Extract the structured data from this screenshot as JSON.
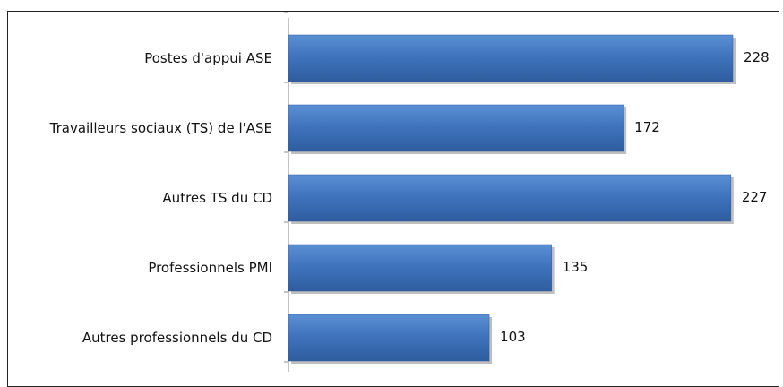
{
  "chart_data": {
    "type": "bar",
    "orientation": "horizontal",
    "categories": [
      "Postes d'appui ASE",
      "Travailleurs sociaux (TS) de l'ASE",
      "Autres TS du CD",
      "Professionnels PMI",
      "Autres professionnels du CD"
    ],
    "values": [
      228,
      172,
      227,
      135,
      103
    ],
    "color": "#3d72bb"
  }
}
